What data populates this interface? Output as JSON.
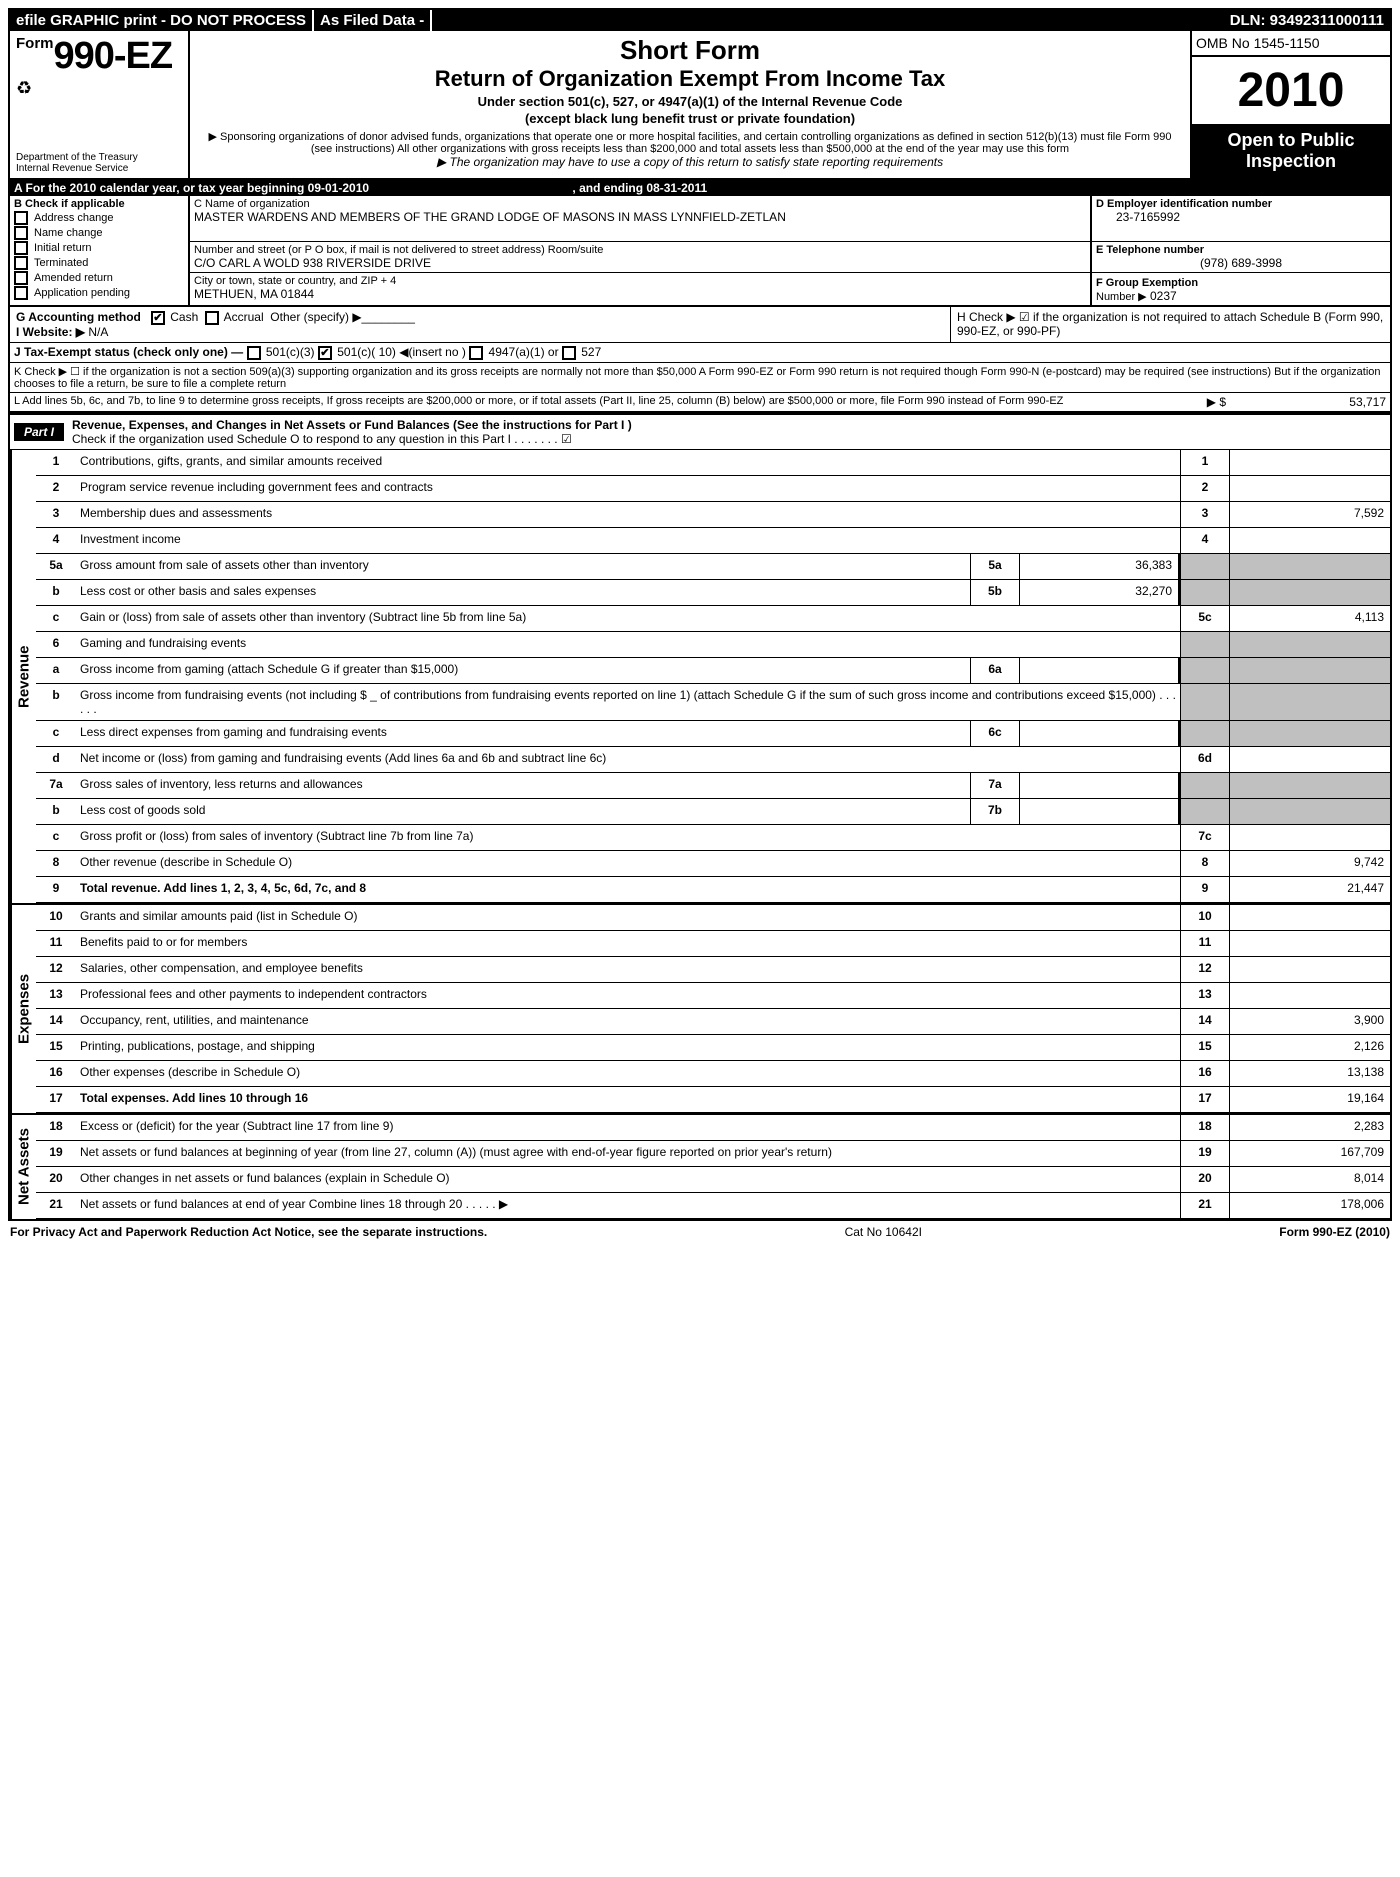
{
  "topbar": {
    "left": "efile GRAPHIC print - DO NOT PROCESS",
    "middle": "As Filed Data -",
    "dln": "DLN: 93492311000111"
  },
  "header": {
    "form_prefix": "Form",
    "form_number": "990-EZ",
    "recycle_icon": "♻",
    "dept1": "Department of the Treasury",
    "dept2": "Internal Revenue Service",
    "title": "Short Form",
    "subtitle": "Return of Organization Exempt From Income Tax",
    "line3": "Under section 501(c), 527, or 4947(a)(1) of the Internal Revenue Code",
    "line4": "(except black lung benefit trust or private foundation)",
    "note1": "▶ Sponsoring organizations of donor advised funds, organizations that operate one or more hospital facilities, and certain controlling organizations as defined in section 512(b)(13) must file Form 990 (see instructions) All other organizations with gross receipts less than $200,000 and total assets less than $500,000 at the end of the year may use this form",
    "note2": "▶ The organization may have to use a copy of this return to satisfy state reporting requirements",
    "omb": "OMB No 1545-1150",
    "year": "2010",
    "open1": "Open to Public",
    "open2": "Inspection"
  },
  "A": {
    "label": "A  For the 2010 calendar year, or tax year beginning 09-01-2010",
    "ending": ", and ending 08-31-2011"
  },
  "B": {
    "label": "B  Check if applicable",
    "opts": [
      "Address change",
      "Name change",
      "Initial return",
      "Terminated",
      "Amended return",
      "Application pending"
    ]
  },
  "C": {
    "label": "C Name of organization",
    "name": "MASTER WARDENS AND MEMBERS OF THE GRAND LODGE OF MASONS IN MASS LYNNFIELD-ZETLAN",
    "street_label": "Number and street (or P O box, if mail is not delivered to street address) Room/suite",
    "street": "C/O CARL A WOLD 938 RIVERSIDE DRIVE",
    "city_label": "City or town, state or country, and ZIP + 4",
    "city": "METHUEN, MA  01844"
  },
  "D": {
    "label": "D Employer identification number",
    "value": "23-7165992"
  },
  "E": {
    "label": "E Telephone number",
    "value": "(978) 689-3998"
  },
  "F": {
    "label": "F Group Exemption",
    "label2": "Number ▶",
    "value": "0237"
  },
  "G": {
    "label": "G Accounting method",
    "cash": "Cash",
    "accrual": "Accrual",
    "other": "Other (specify) ▶"
  },
  "I": {
    "label": "I Website: ▶",
    "value": "N/A"
  },
  "H": {
    "text": "H   Check ▶ ☑  if the organization is not required to attach Schedule B (Form 990, 990-EZ, or 990-PF)"
  },
  "J": {
    "label": "J Tax-Exempt status (check only one) —",
    "c3": "501(c)(3)",
    "c10": "501(c)( 10) ◀(insert no )",
    "c4947": "4947(a)(1) or",
    "c527": "527"
  },
  "K": {
    "text": "K Check ▶ ☐  if the organization is not a section 509(a)(3) supporting organization and its gross receipts are normally not more than $50,000  A Form 990-EZ or Form 990 return is not required though Form 990-N (e-postcard) may be required (see instructions)  But if the organization chooses to file a return, be sure to file a complete return"
  },
  "L": {
    "text": "L Add lines 5b, 6c, and 7b, to line 9 to determine gross receipts, If gross receipts are $200,000 or more, or if total assets (Part II, line 25, column (B) below) are $500,000 or more, file Form 990 instead of Form 990-EZ",
    "amount_label": "▶ $",
    "amount": "53,717"
  },
  "partI": {
    "badge": "Part I",
    "title": "Revenue, Expenses, and Changes in Net Assets or Fund Balances (See the instructions for Part I )",
    "check_line": "Check if the organization used Schedule O to respond to any question in this Part I     .     .     .     .     .     .     .  ☑"
  },
  "sections": {
    "revenue": "Revenue",
    "expenses": "Expenses",
    "netassets": "Net Assets"
  },
  "lines": {
    "1": {
      "desc": "Contributions, gifts, grants, and similar amounts received",
      "rn": "1",
      "rv": ""
    },
    "2": {
      "desc": "Program service revenue including government fees and contracts",
      "rn": "2",
      "rv": ""
    },
    "3": {
      "desc": "Membership dues and assessments",
      "rn": "3",
      "rv": "7,592"
    },
    "4": {
      "desc": "Investment income",
      "rn": "4",
      "rv": ""
    },
    "5a": {
      "desc": "Gross amount from sale of assets other than inventory",
      "mn": "5a",
      "mv": "36,383"
    },
    "5b": {
      "desc": "Less  cost or other basis and sales expenses",
      "mn": "5b",
      "mv": "32,270"
    },
    "5c": {
      "desc": "Gain or (loss) from sale of assets other than inventory (Subtract line 5b from line 5a)",
      "rn": "5c",
      "rv": "4,113"
    },
    "6": {
      "desc": "Gaming and fundraising events"
    },
    "6a": {
      "desc": "Gross income from gaming (attach Schedule G if greater than $15,000)",
      "mn": "6a",
      "mv": ""
    },
    "6b": {
      "desc": "Gross income from fundraising events (not including $ _ of contributions from fundraising events reported on line 1) (attach Schedule G if the sum of such gross income and contributions exceed $15,000)      .      .      .      .      .      ."
    },
    "6c": {
      "desc": "Less  direct expenses from gaming and fundraising events",
      "mn": "6c",
      "mv": ""
    },
    "6d": {
      "desc": "Net income or (loss) from gaming and fundraising events (Add lines 6a and 6b and subtract line 6c)",
      "rn": "6d",
      "rv": ""
    },
    "7a": {
      "desc": "Gross sales of inventory, less returns and allowances",
      "mn": "7a",
      "mv": ""
    },
    "7b": {
      "desc": "Less  cost of goods sold",
      "mn": "7b",
      "mv": ""
    },
    "7c": {
      "desc": "Gross profit or (loss) from sales of inventory (Subtract line 7b from line 7a)",
      "rn": "7c",
      "rv": ""
    },
    "8": {
      "desc": "Other revenue (describe in Schedule O)",
      "rn": "8",
      "rv": "9,742"
    },
    "9": {
      "desc": "Total revenue. Add lines 1, 2, 3, 4, 5c, 6d, 7c, and 8",
      "rn": "9",
      "rv": "21,447",
      "bold": true
    },
    "10": {
      "desc": "Grants and similar amounts paid (list in Schedule O)",
      "rn": "10",
      "rv": ""
    },
    "11": {
      "desc": "Benefits paid to or for members",
      "rn": "11",
      "rv": ""
    },
    "12": {
      "desc": "Salaries, other compensation, and employee benefits",
      "rn": "12",
      "rv": ""
    },
    "13": {
      "desc": "Professional fees and other payments to independent contractors",
      "rn": "13",
      "rv": ""
    },
    "14": {
      "desc": "Occupancy, rent, utilities, and maintenance",
      "rn": "14",
      "rv": "3,900"
    },
    "15": {
      "desc": "Printing, publications, postage, and shipping",
      "rn": "15",
      "rv": "2,126"
    },
    "16": {
      "desc": "Other expenses (describe in Schedule O)",
      "rn": "16",
      "rv": "13,138"
    },
    "17": {
      "desc": "Total expenses. Add lines 10 through 16",
      "rn": "17",
      "rv": "19,164",
      "bold": true
    },
    "18": {
      "desc": "Excess or (deficit) for the year (Subtract line 17 from line 9)",
      "rn": "18",
      "rv": "2,283"
    },
    "19": {
      "desc": "Net assets or fund balances at beginning of year (from line 27, column (A)) (must agree with end-of-year figure reported on prior year's return)",
      "rn": "19",
      "rv": "167,709"
    },
    "20": {
      "desc": "Other changes in net assets or fund balances (explain in Schedule O)",
      "rn": "20",
      "rv": "8,014"
    },
    "21": {
      "desc": "Net assets or fund balances at end of year  Combine lines 18 through 20     .     .     .     .     . ▶",
      "rn": "21",
      "rv": "178,006"
    }
  },
  "footer": {
    "left": "For Privacy Act and Paperwork Reduction Act Notice, see the separate instructions.",
    "mid": "Cat No  10642I",
    "right": "Form 990-EZ (2010)"
  }
}
